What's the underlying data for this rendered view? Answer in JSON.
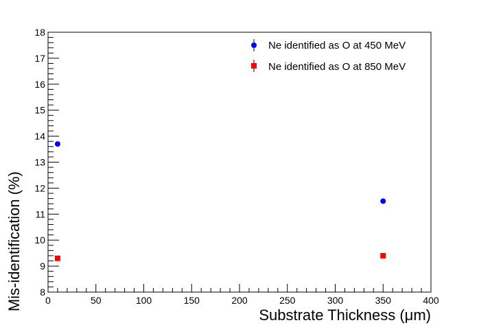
{
  "chart_data": {
    "type": "scatter",
    "xlabel": "Substrate Thickness (μm)",
    "ylabel": "Mis-identification (%)",
    "xlim": [
      0,
      400
    ],
    "ylim": [
      8,
      18
    ],
    "x_ticks": [
      "0",
      "50",
      "100",
      "150",
      "200",
      "250",
      "300",
      "350",
      "400"
    ],
    "y_ticks": [
      "8",
      "9",
      "10",
      "11",
      "12",
      "13",
      "14",
      "15",
      "16",
      "17",
      "18"
    ],
    "grid": false,
    "legend_position": "top-right",
    "series": [
      {
        "name": "Ne identified as O at 450 MeV",
        "color": "#0000ff",
        "marker": "circle",
        "x": [
          10,
          350
        ],
        "y": [
          13.7,
          11.5
        ]
      },
      {
        "name": "Ne identified as O at 850 MeV",
        "color": "#ff0000",
        "marker": "square",
        "x": [
          10,
          350
        ],
        "y": [
          9.3,
          9.4
        ]
      }
    ]
  }
}
